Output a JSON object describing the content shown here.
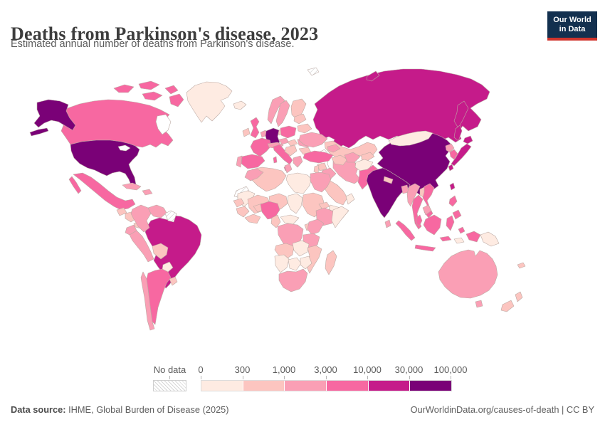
{
  "header": {
    "title": "Deaths from Parkinson's disease, 2023",
    "subtitle": "Estimated annual number of deaths from Parkinson's disease."
  },
  "logo": {
    "line1": "Our World",
    "line2": "in Data",
    "bg_color": "#13304f",
    "accent_color": "#d0342c"
  },
  "legend": {
    "no_data_label": "No data",
    "tick_labels": [
      "0",
      "300",
      "1,000",
      "3,000",
      "10,000",
      "30,000",
      "100,000"
    ],
    "bin_colors": [
      "#feebe2",
      "#fcc5c0",
      "#fa9fb5",
      "#f768a1",
      "#c51b8a",
      "#7a0177"
    ]
  },
  "footer": {
    "source_label": "Data source:",
    "source_text": " IHME, Global Burden of Disease (2025)",
    "right_text": "OurWorldinData.org/causes-of-death | CC BY"
  },
  "chart_data": {
    "type": "choropleth_map",
    "title": "Deaths from Parkinson's disease, 2023",
    "unit": "deaths per year",
    "bins": [
      {
        "label": "0-300",
        "color": "#feebe2"
      },
      {
        "label": "300-1,000",
        "color": "#fcc5c0"
      },
      {
        "label": "1,000-3,000",
        "color": "#fa9fb5"
      },
      {
        "label": "3,000-10,000",
        "color": "#f768a1"
      },
      {
        "label": "10,000-30,000",
        "color": "#c51b8a"
      },
      {
        "label": "30,000-100,000",
        "color": "#7a0177"
      },
      {
        "label": "No data",
        "color": "hatch"
      }
    ],
    "country_bins": {
      "United States": 5,
      "China": 5,
      "India": 5,
      "Germany": 5,
      "Brazil": 4,
      "Russia": 4,
      "Japan": 4,
      "Taiwan": 4,
      "Canada": 3,
      "Mexico": 3,
      "Argentina": 3,
      "United Kingdom": 3,
      "France": 3,
      "Spain": 3,
      "Italy": 3,
      "Poland": 3,
      "Turkey": 3,
      "Pakistan": 3,
      "Thailand": 3,
      "Vietnam": 3,
      "Philippines": 3,
      "Indonesia": 3,
      "Malaysia": 3,
      "Nigeria": 3,
      "South Korea": 3,
      "Colombia": 2,
      "Peru": 2,
      "Venezuela": 2,
      "Ecuador": 2,
      "Chile": 2,
      "Cuba": 2,
      "Dominican Republic": 2,
      "Ukraine": 2,
      "Romania": 2,
      "Greece": 2,
      "Portugal": 2,
      "Norway": 2,
      "Sweden": 2,
      "Czechia": 2,
      "Austria": 2,
      "Netherlands": 2,
      "Morocco": 2,
      "Egypt": 2,
      "Tunisia": 2,
      "Ethiopia": 2,
      "Democratic Republic of Congo": 2,
      "Kenya": 2,
      "Tanzania": 2,
      "South Africa": 2,
      "Iraq": 2,
      "Iran": 2,
      "Myanmar": 2,
      "Bangladesh": 2,
      "North Korea": 2,
      "Sri Lanka": 2,
      "Cambodia": 2,
      "Australia": 2,
      "Azerbaijan": 2,
      "Uzbekistan": 2,
      "Kazakhstan": 1,
      "Turkmenistan": 1,
      "Kyrgyzstan": 1,
      "Finland": 1,
      "Denmark": 1,
      "Ireland": 1,
      "Hungary": 1,
      "Bulgaria": 1,
      "Serbia": 1,
      "Belarus": 1,
      "Lithuania": 1,
      "Algeria": 1,
      "Mali": 1,
      "Niger": 1,
      "Sudan": 1,
      "Senegal": 1,
      "Guinea": 1,
      "Ghana": 1,
      "Burkina Faso": 1,
      "Cameroon": 1,
      "Angola": 1,
      "Mozambique": 1,
      "Madagascar": 1,
      "Bolivia": 1,
      "Uruguay": 1,
      "Guatemala": 1,
      "Honduras": 1,
      "Panama": 1,
      "Saudi Arabia": 1,
      "Syria": 1,
      "Jordan": 1,
      "Nepal": 1,
      "Laos": 1,
      "New Zealand": 1,
      "Uganda": 1,
      "Eritrea": 1,
      "New Caledonia": 1,
      "Greenland": 0,
      "Iceland": 0,
      "Mongolia": 0,
      "Afghanistan": 0,
      "Libya": 0,
      "Chad": 0,
      "Central African Republic": 0,
      "Somalia": 0,
      "Mauritania": 0,
      "Zambia": 0,
      "Zimbabwe": 0,
      "Namibia": 0,
      "Botswana": 0,
      "Yemen": 0,
      "Oman": 0,
      "Papua New Guinea": 0,
      "Paraguay": 0,
      "East Timor": 0,
      "Western Sahara": "nd",
      "Guyana": "nd",
      "Suriname": "nd",
      "Svalbard": "nd"
    }
  }
}
